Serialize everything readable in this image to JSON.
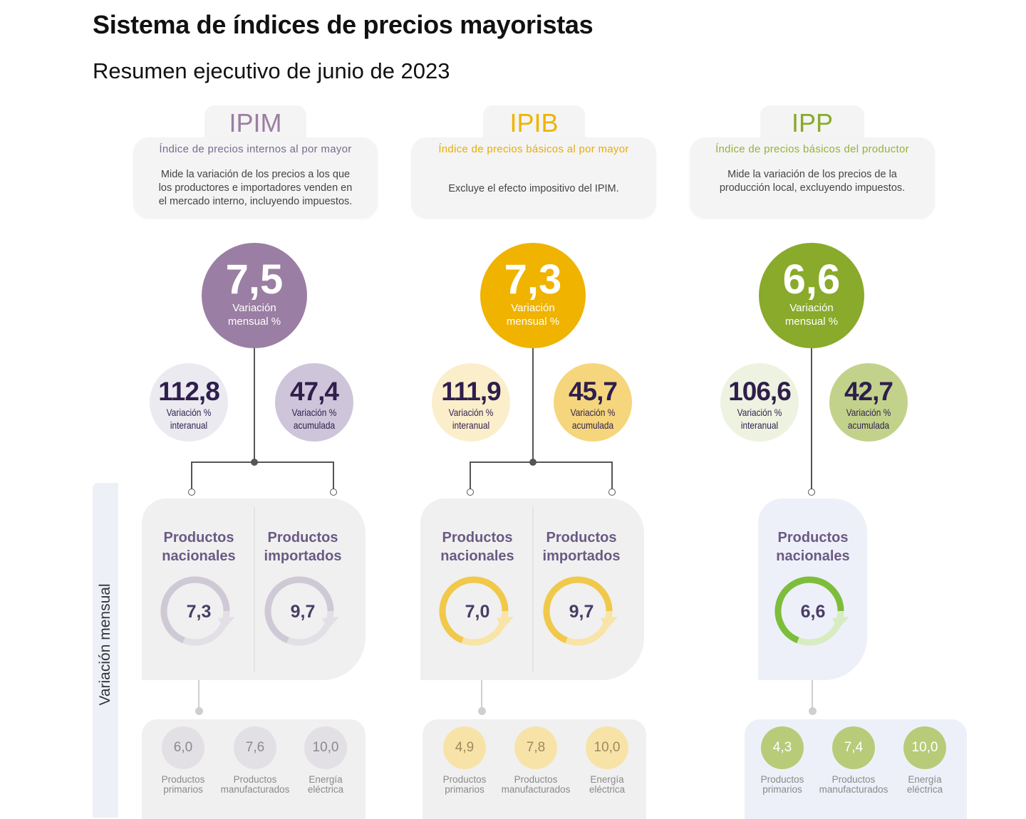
{
  "header": {
    "title": "Sistema de índices de precios mayoristas",
    "subtitle": "Resumen ejecutivo de junio de 2023"
  },
  "side_label": "Variación mensual",
  "indices": [
    {
      "code": "IPIM",
      "name": "Índice de precios internos al por mayor",
      "description": [
        "Mide la variación de los precios a los que",
        "los productores e importadores venden en",
        "el mercado interno, incluyendo impuestos."
      ],
      "monthly": {
        "value": "7,5",
        "label": [
          "Variación",
          "mensual %"
        ]
      },
      "interannual": {
        "value": "112,8",
        "label": [
          "Variación %",
          "interanual"
        ]
      },
      "accumulated": {
        "value": "47,4",
        "label": [
          "Variación %",
          "acumulada"
        ]
      },
      "products": [
        {
          "title": [
            "Productos",
            "nacionales"
          ],
          "value": "7,3"
        },
        {
          "title": [
            "Productos",
            "importados"
          ],
          "value": "9,7"
        }
      ],
      "breakdown": [
        {
          "value": "6,0",
          "label": [
            "Productos",
            "primarios"
          ]
        },
        {
          "value": "7,6",
          "label": [
            "Productos",
            "manufacturados"
          ]
        },
        {
          "value": "10,0",
          "label": [
            "Energía",
            "eléctrica"
          ]
        }
      ],
      "colors": {
        "accent": "#9b7ea3",
        "title": "#9b7ea3",
        "sub": "#7a6a90",
        "small_left": "#ebeaf0",
        "small_right": "#cec5da",
        "ring_dark": "#cfc9d6",
        "ring_light": "#e2dfe6",
        "box": "#f0f0f0",
        "bc": "#e2e0e5",
        "bc_text": "#8a8a8a"
      }
    },
    {
      "code": "IPIB",
      "name": "Índice de precios básicos al por mayor",
      "description": [
        "Excluye el efecto impositivo del IPIM."
      ],
      "monthly": {
        "value": "7,3",
        "label": [
          "Variación",
          "mensual %"
        ]
      },
      "interannual": {
        "value": "111,9",
        "label": [
          "Variación %",
          "interanual"
        ]
      },
      "accumulated": {
        "value": "45,7",
        "label": [
          "Variación %",
          "acumulada"
        ]
      },
      "products": [
        {
          "title": [
            "Productos",
            "nacionales"
          ],
          "value": "7,0"
        },
        {
          "title": [
            "Productos",
            "importados"
          ],
          "value": "9,7"
        }
      ],
      "breakdown": [
        {
          "value": "4,9",
          "label": [
            "Productos",
            "primarios"
          ]
        },
        {
          "value": "7,8",
          "label": [
            "Productos",
            "manufacturados"
          ]
        },
        {
          "value": "10,0",
          "label": [
            "Energía",
            "eléctrica"
          ]
        }
      ],
      "colors": {
        "accent": "#efb300",
        "title": "#efb300",
        "sub": "#e5ad10",
        "small_left": "#fbeecb",
        "small_right": "#f6d67c",
        "ring_dark": "#f0c94a",
        "ring_light": "#f7e4a6",
        "box": "#f0f0f0",
        "bc": "#f7e3a8",
        "bc_text": "#9c8a5c"
      }
    },
    {
      "code": "IPP",
      "name": "Índice de precios básicos del productor",
      "description": [
        "Mide la variación de los precios de la",
        "producción local, excluyendo impuestos."
      ],
      "monthly": {
        "value": "6,6",
        "label": [
          "Variación",
          "mensual %"
        ]
      },
      "interannual": {
        "value": "106,6",
        "label": [
          "Variación %",
          "interanual"
        ]
      },
      "accumulated": {
        "value": "42,7",
        "label": [
          "Variación %",
          "acumulada"
        ]
      },
      "products": [
        {
          "title": [
            "Productos",
            "nacionales"
          ],
          "value": "6,6"
        }
      ],
      "breakdown": [
        {
          "value": "4,3",
          "label": [
            "Productos",
            "primarios"
          ]
        },
        {
          "value": "7,4",
          "label": [
            "Productos",
            "manufacturados"
          ]
        },
        {
          "value": "10,0",
          "label": [
            "Energía",
            "eléctrica"
          ]
        }
      ],
      "colors": {
        "accent": "#89aa2b",
        "title": "#89aa2b",
        "sub": "#94b23a",
        "small_left": "#eef2e0",
        "small_right": "#c3d28a",
        "ring_dark": "#7dbd3c",
        "ring_light": "#d8ecc2",
        "box": "#eef0f9",
        "bc": "#b8cb78",
        "bc_text": "#ffffff"
      }
    }
  ]
}
